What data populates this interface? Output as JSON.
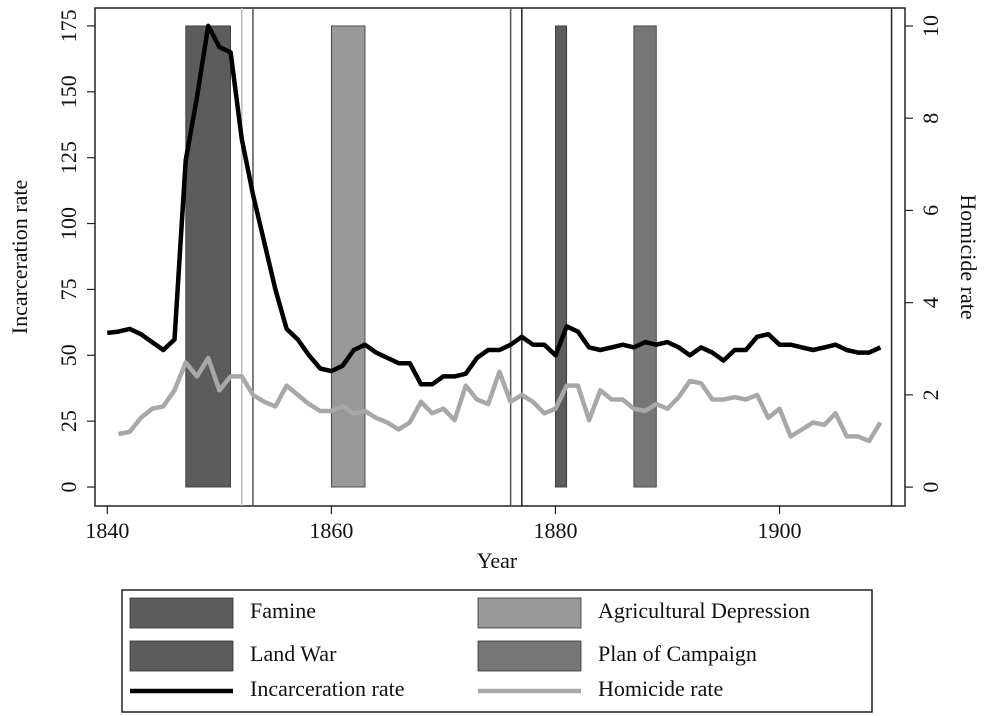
{
  "chart_data": {
    "type": "line",
    "xlabel": "Year",
    "ylabel": "Incarceration rate",
    "y2label": "Homicide rate",
    "x": [
      1840,
      1841,
      1842,
      1843,
      1844,
      1845,
      1846,
      1847,
      1848,
      1849,
      1850,
      1851,
      1852,
      1853,
      1854,
      1855,
      1856,
      1857,
      1858,
      1859,
      1860,
      1861,
      1862,
      1863,
      1864,
      1865,
      1866,
      1867,
      1868,
      1869,
      1870,
      1871,
      1872,
      1873,
      1874,
      1875,
      1876,
      1877,
      1878,
      1879,
      1880,
      1881,
      1882,
      1883,
      1884,
      1885,
      1886,
      1887,
      1888,
      1889,
      1890,
      1891,
      1892,
      1893,
      1894,
      1895,
      1896,
      1897,
      1898,
      1899,
      1900,
      1901,
      1902,
      1903,
      1904,
      1905,
      1906,
      1907,
      1908,
      1909
    ],
    "series": [
      {
        "name": "Incarceration rate",
        "color": "#000000",
        "values": [
          58.5,
          59,
          60,
          58,
          55,
          52,
          56,
          124,
          148,
          175,
          167,
          165,
          132,
          111,
          93,
          75,
          60,
          56,
          50,
          45,
          44,
          46,
          52,
          54,
          51,
          49,
          47,
          47,
          39,
          39,
          42,
          42,
          43,
          49,
          52,
          52,
          54,
          57,
          54,
          54,
          50,
          61,
          59,
          53,
          52,
          53,
          54,
          53,
          55,
          54,
          55,
          53,
          50,
          53,
          51,
          48,
          52,
          52,
          57,
          58,
          54,
          54,
          53,
          52,
          53,
          54,
          52,
          51,
          51,
          53
        ]
      },
      {
        "name": "Homicide rate",
        "color": "#a8a8a8",
        "axis": "y2",
        "values": [
          null,
          1.15,
          1.2,
          1.5,
          1.7,
          1.75,
          2.1,
          2.7,
          2.4,
          2.8,
          2.1,
          2.4,
          2.4,
          2.0,
          1.85,
          1.75,
          2.2,
          2.0,
          1.8,
          1.65,
          1.65,
          1.75,
          1.6,
          1.65,
          1.5,
          1.4,
          1.25,
          1.4,
          1.85,
          1.6,
          1.7,
          1.45,
          2.2,
          1.9,
          1.8,
          2.5,
          1.85,
          2.0,
          1.85,
          1.6,
          1.7,
          2.2,
          2.2,
          1.45,
          2.1,
          1.9,
          1.9,
          1.7,
          1.65,
          1.8,
          1.7,
          1.95,
          2.3,
          2.25,
          1.9,
          1.9,
          1.95,
          1.9,
          2.0,
          1.5,
          1.7,
          1.1,
          1.25,
          1.4,
          1.35,
          1.6,
          1.1,
          1.1,
          1.0,
          1.4
        ]
      }
    ],
    "regions": [
      {
        "name": "Famine",
        "color": "#5c5c5c",
        "x": [
          1847,
          1851
        ],
        "y": [
          0,
          175
        ]
      },
      {
        "name": "Agricultural Depression",
        "color": "#999999",
        "x": [
          1860,
          1863
        ],
        "y": [
          0,
          175
        ]
      },
      {
        "name": "Land War",
        "color": "#5c5c5c",
        "x": [
          1880,
          1881
        ],
        "y": [
          0,
          175
        ]
      },
      {
        "name": "Plan of Campaign",
        "color": "#767676",
        "x": [
          1887,
          1889
        ],
        "y": [
          0,
          175
        ]
      }
    ],
    "vlines": [
      {
        "x": 1852,
        "color": "#bbbbbb"
      },
      {
        "x": 1853,
        "color": "#555555"
      },
      {
        "x": 1876,
        "color": "#555555"
      },
      {
        "x": 1877,
        "color": "#222222"
      },
      {
        "x": 1910,
        "color": "#222222"
      }
    ],
    "xlim": [
      1838.9,
      1911.2
    ],
    "xticks": [
      1840,
      1860,
      1880,
      1900
    ],
    "ylim": [
      -7.2,
      181.8
    ],
    "yticks": [
      0,
      25,
      50,
      75,
      100,
      125,
      150,
      175
    ],
    "y2lim": [
      -0.41,
      10.39
    ],
    "y2ticks": [
      0,
      2,
      4,
      6,
      8,
      10
    ],
    "legend": "bottom"
  }
}
